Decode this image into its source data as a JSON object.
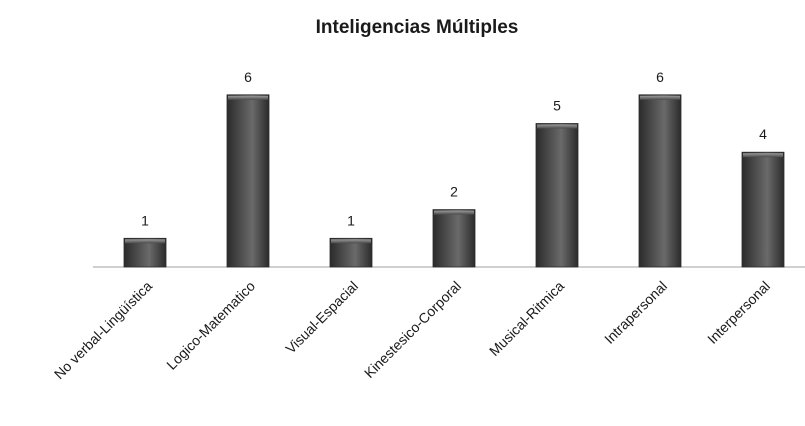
{
  "chart_data": {
    "type": "bar",
    "title": "Inteligencias Múltiples",
    "categories": [
      "No verbal-Lingüística",
      "Logico-Matematico",
      "Visual-Espacial",
      "Kinestesico-Corporal",
      "Musical-Ritmica",
      "Intrapersonal",
      "Interpersonal"
    ],
    "values": [
      1,
      6,
      1,
      2,
      5,
      6,
      4
    ],
    "ylim": [
      0,
      6
    ],
    "grid": false,
    "legend": "none",
    "colors": {
      "bar_dark": "#2b2b2b",
      "bar_mid": "#5a5a5a",
      "bar_light": "#8a8a8a",
      "axis": "#a0a0a0",
      "text": "#1a1a1a"
    }
  }
}
